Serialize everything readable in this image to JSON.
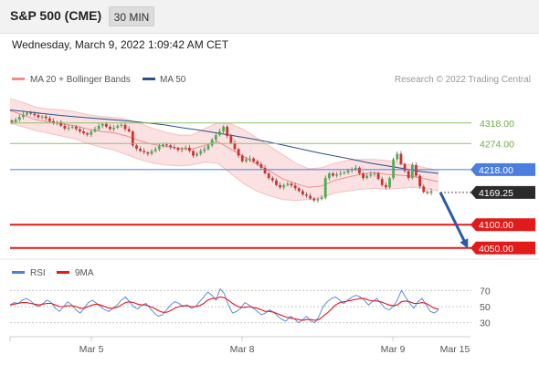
{
  "header": {
    "title": "S&P 500 (CME)",
    "timeframe": "30 MIN"
  },
  "datetime": "Wednesday, March 9, 2022 1:09:42 AM CET",
  "legend": {
    "items": [
      {
        "label": "MA 20 + Bollinger Bands",
        "color": "#f08c8c"
      },
      {
        "label": "MA 50",
        "color": "#2c4f8c"
      }
    ],
    "copyright": "Research © 2022 Trading Central"
  },
  "rsi_legend": {
    "items": [
      {
        "label": "RSI",
        "color": "#4f7fd8"
      },
      {
        "label": "9MA",
        "color": "#e31a1a"
      }
    ]
  },
  "colors": {
    "resistance": "#8cc56a",
    "pivot": "#4a7fe0",
    "support": "#e31a1a",
    "current": "#2b2b2b",
    "arrow": "#2b5aa6",
    "bull_candle": "#4caf50",
    "bear_candle": "#d32f2f"
  },
  "chart_data": [
    {
      "type": "line",
      "title": "",
      "x_ticks": [
        "Mar 5",
        "Mar 8",
        "Mar 9",
        "Mar 15"
      ],
      "ylim": [
        4030,
        4390
      ],
      "levels": [
        {
          "value": 4318.0,
          "label": "4318.00",
          "kind": "resistance"
        },
        {
          "value": 4274.0,
          "label": "4274.00",
          "kind": "resistance"
        },
        {
          "value": 4218.0,
          "label": "4218.00",
          "kind": "pivot"
        },
        {
          "value": 4169.25,
          "label": "4169.25",
          "kind": "current"
        },
        {
          "value": 4100.0,
          "label": "4100.00",
          "kind": "support"
        },
        {
          "value": 4050.0,
          "label": "4050.00",
          "kind": "support"
        }
      ],
      "close_series": [
        4320,
        4325,
        4331,
        4336,
        4340,
        4338,
        4335,
        4330,
        4332,
        4328,
        4322,
        4318,
        4320,
        4312,
        4306,
        4308,
        4310,
        4305,
        4300,
        4296,
        4293,
        4300,
        4305,
        4312,
        4316,
        4310,
        4305,
        4308,
        4312,
        4314,
        4305,
        4300,
        4270,
        4263,
        4258,
        4255,
        4252,
        4258,
        4262,
        4268,
        4272,
        4270,
        4266,
        4264,
        4260,
        4262,
        4265,
        4258,
        4248,
        4252,
        4258,
        4262,
        4270,
        4282,
        4292,
        4300,
        4310,
        4290,
        4275,
        4262,
        4248,
        4236,
        4240,
        4242,
        4236,
        4230,
        4222,
        4210,
        4200,
        4195,
        4185,
        4180,
        4185,
        4188,
        4184,
        4178,
        4172,
        4165,
        4162,
        4156,
        4152,
        4155,
        4158,
        4200,
        4210,
        4205,
        4208,
        4210,
        4212,
        4216,
        4218,
        4222,
        4210,
        4200,
        4205,
        4208,
        4210,
        4198,
        4185,
        4180,
        4200,
        4240,
        4252,
        4230,
        4215,
        4200,
        4228,
        4205,
        4182,
        4170,
        4168,
        4172
      ],
      "ma50": [
        4346,
        4342,
        4338,
        4334,
        4331,
        4328,
        4325,
        4322,
        4318,
        4314,
        4308,
        4303,
        4297,
        4291,
        4285,
        4278,
        4270,
        4262,
        4254,
        4247,
        4240,
        4232,
        4226,
        4220,
        4214,
        4210
      ],
      "ma20": [
        4345,
        4335,
        4325,
        4320,
        4316,
        4312,
        4305,
        4300,
        4297,
        4290,
        4280,
        4272,
        4268,
        4264,
        4262,
        4270,
        4278,
        4262,
        4246,
        4230,
        4215,
        4198,
        4188,
        4180,
        4183,
        4195,
        4202,
        4208,
        4212,
        4208,
        4206,
        4204,
        4198,
        4192
      ],
      "bb_upper": [
        4370,
        4362,
        4352,
        4348,
        4346,
        4342,
        4336,
        4332,
        4330,
        4326,
        4318,
        4306,
        4298,
        4292,
        4292,
        4306,
        4318,
        4316,
        4304,
        4286,
        4268,
        4250,
        4232,
        4220,
        4222,
        4232,
        4238,
        4240,
        4240,
        4238,
        4232,
        4228,
        4222,
        4216
      ],
      "bb_lower": [
        4318,
        4310,
        4302,
        4296,
        4290,
        4284,
        4274,
        4266,
        4260,
        4250,
        4240,
        4232,
        4228,
        4226,
        4228,
        4234,
        4232,
        4210,
        4188,
        4172,
        4162,
        4154,
        4152,
        4154,
        4158,
        4168,
        4172,
        4176,
        4178,
        4176,
        4178,
        4180,
        4178,
        4172
      ],
      "projection": {
        "from": 4169.25,
        "to": 4050.0
      }
    },
    {
      "type": "line",
      "title": "",
      "ylim": [
        15,
        85
      ],
      "y_ticks": [
        "70",
        "50",
        "30"
      ],
      "series": [
        {
          "name": "RSI",
          "values": [
            52,
            55,
            54,
            58,
            60,
            57,
            52,
            50,
            54,
            58,
            55,
            48,
            44,
            50,
            56,
            52,
            46,
            42,
            48,
            55,
            58,
            54,
            50,
            46,
            44,
            48,
            52,
            58,
            62,
            56,
            50,
            47,
            52,
            54,
            48,
            42,
            38,
            40,
            46,
            52,
            56,
            54,
            50,
            52,
            48,
            50,
            56,
            62,
            68,
            64,
            58,
            72,
            66,
            52,
            42,
            44,
            48,
            55,
            52,
            48,
            44,
            40,
            42,
            46,
            43,
            38,
            34,
            32,
            38,
            35,
            30,
            34,
            38,
            32,
            30,
            38,
            50,
            56,
            60,
            62,
            58,
            54,
            58,
            62,
            64,
            62,
            58,
            52,
            56,
            60,
            54,
            48,
            46,
            50,
            58,
            70,
            62,
            54,
            48,
            56,
            60,
            52,
            44,
            42,
            46
          ]
        },
        {
          "name": "9MA",
          "values": [
            52,
            53,
            54,
            55,
            55,
            54,
            53,
            52,
            53,
            54,
            54,
            52,
            50,
            50,
            51,
            51,
            50,
            48,
            48,
            50,
            52,
            53,
            52,
            50,
            48,
            48,
            49,
            52,
            55,
            56,
            55,
            53,
            52,
            52,
            50,
            48,
            45,
            43,
            43,
            45,
            48,
            50,
            51,
            51,
            50,
            50,
            51,
            54,
            58,
            60,
            60,
            62,
            61,
            58,
            54,
            51,
            49,
            49,
            50,
            49,
            48,
            46,
            44,
            44,
            43,
            41,
            39,
            37,
            36,
            35,
            34,
            33,
            34,
            34,
            33,
            34,
            38,
            42,
            47,
            52,
            55,
            56,
            57,
            58,
            59,
            60,
            60,
            58,
            57,
            57,
            56,
            54,
            52,
            51,
            52,
            56,
            57,
            56,
            54,
            54,
            55,
            54,
            51,
            48,
            47
          ]
        }
      ]
    }
  ]
}
